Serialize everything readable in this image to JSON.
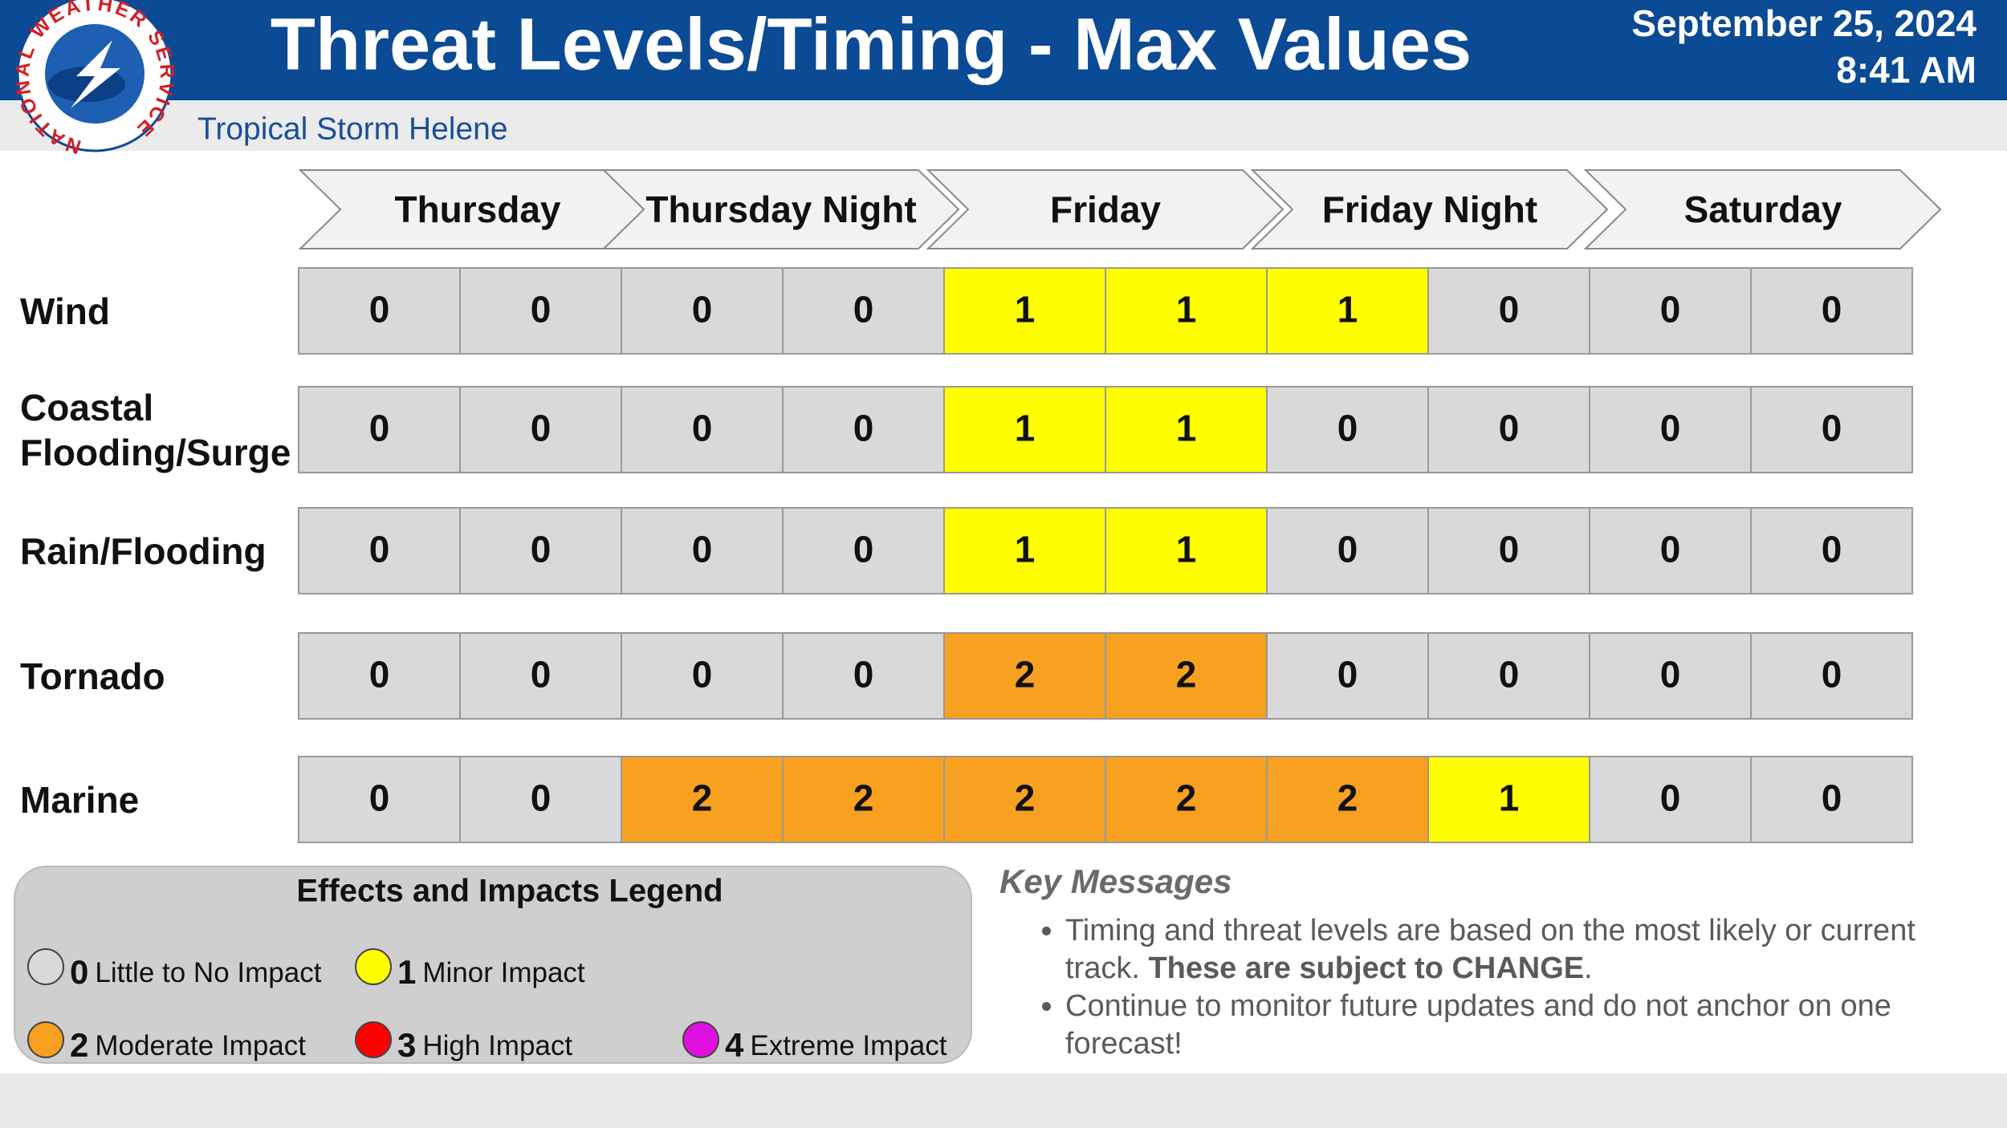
{
  "header": {
    "title": "Threat Levels/Timing - Max Values",
    "subtitle": "Tropical Storm Helene",
    "date": "September 25, 2024",
    "time": "8:41 AM",
    "logo_text": "NATIONAL WEATHER SERVICE"
  },
  "periods": [
    "Thursday",
    "Thursday Night",
    "Friday",
    "Friday Night",
    "Saturday"
  ],
  "threats": [
    {
      "name": "Wind",
      "values": [
        0,
        0,
        0,
        0,
        1,
        1,
        1,
        0,
        0,
        0
      ]
    },
    {
      "name": "Coastal Flooding/Surge",
      "values": [
        0,
        0,
        0,
        0,
        1,
        1,
        0,
        0,
        0,
        0
      ]
    },
    {
      "name": "Rain/Flooding",
      "values": [
        0,
        0,
        0,
        0,
        1,
        1,
        0,
        0,
        0,
        0
      ]
    },
    {
      "name": "Tornado",
      "values": [
        0,
        0,
        0,
        0,
        2,
        2,
        0,
        0,
        0,
        0
      ]
    },
    {
      "name": "Marine",
      "values": [
        0,
        0,
        2,
        2,
        2,
        2,
        2,
        1,
        0,
        0
      ]
    }
  ],
  "legend": {
    "title": "Effects and Impacts Legend",
    "levels": [
      {
        "value": 0,
        "label": "Little to No Impact",
        "color": "#d9d9d9"
      },
      {
        "value": 1,
        "label": "Minor Impact",
        "color": "#ffff00"
      },
      {
        "value": 2,
        "label": "Moderate Impact",
        "color": "#f8a020"
      },
      {
        "value": 3,
        "label": "High Impact",
        "color": "#ff0000"
      },
      {
        "value": 4,
        "label": "Extreme Impact",
        "color": "#e010e0"
      }
    ]
  },
  "key_messages": {
    "title": "Key Messages",
    "items": [
      [
        {
          "text": "Timing and threat levels are based on the most likely or current track. ",
          "bold": false
        },
        {
          "text": "These are subject to CHANGE",
          "bold": true
        },
        {
          "text": ".",
          "bold": false
        }
      ],
      [
        {
          "text": "Continue to monitor future updates and do not anchor on one forecast!",
          "bold": false
        }
      ]
    ]
  }
}
